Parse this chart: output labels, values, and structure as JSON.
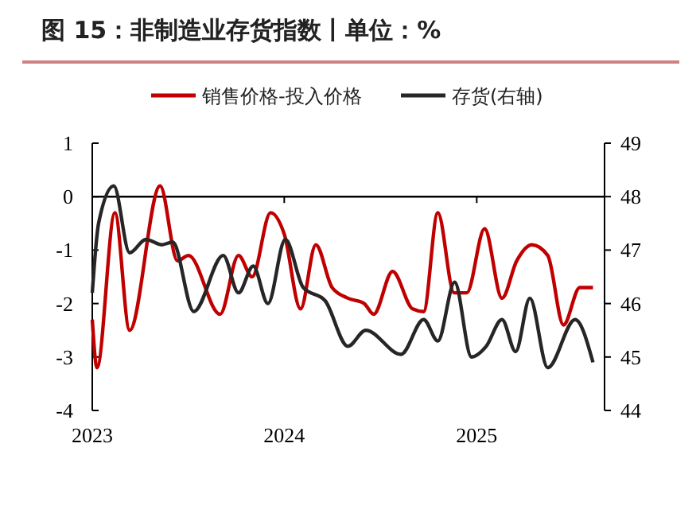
{
  "chart_data": {
    "type": "line",
    "title": "图 15：非制造业存货指数丨单位：%",
    "legend": "top",
    "xlim": [
      "2023-01-01",
      "2025-09-01"
    ],
    "xticks": [
      {
        "value": "2023-01-01",
        "label": "2023"
      },
      {
        "value": "2024-01-01",
        "label": "2024"
      },
      {
        "value": "2025-01-01",
        "label": "2025"
      }
    ],
    "ylim": [
      -4,
      1
    ],
    "yticks": [
      -4,
      -3,
      -2,
      -1,
      0,
      1
    ],
    "y2lim": [
      44,
      49
    ],
    "y2ticks": [
      44,
      45,
      46,
      47,
      48,
      49
    ],
    "line_style": "solid",
    "series": [
      {
        "name": "销售价格-投入价格",
        "color": "#c00000",
        "x": [
          "2023-01-01",
          "2023-01-10",
          "2023-02-13",
          "2023-03-13",
          "2023-05-10",
          "2023-06-12",
          "2023-07-03",
          "2023-09-01",
          "2023-10-06",
          "2023-11-01",
          "2023-12-06",
          "2024-01-01",
          "2024-02-01",
          "2024-03-01",
          "2024-04-01",
          "2024-05-01",
          "2024-06-01",
          "2024-06-19",
          "2024-07-25",
          "2024-09-01",
          "2024-09-22",
          "2024-10-19",
          "2024-11-19",
          "2024-12-13",
          "2025-01-16",
          "2025-02-18",
          "2025-03-18",
          "2025-04-16",
          "2025-05-16",
          "2025-06-15",
          "2025-07-16",
          "2025-08-10"
        ],
        "values": [
          -2.3,
          -3.2,
          -0.3,
          -2.5,
          0.2,
          -1.2,
          -1.1,
          -2.2,
          -1.1,
          -1.5,
          -0.3,
          -0.7,
          -2.1,
          -0.9,
          -1.7,
          -1.9,
          -2.0,
          -2.2,
          -1.4,
          -2.1,
          -2.15,
          -0.3,
          -1.8,
          -1.8,
          -0.6,
          -1.9,
          -1.2,
          -0.9,
          -1.1,
          -2.4,
          -1.7,
          -1.7
        ]
      },
      {
        "name": "存货(右轴)",
        "color": "#262626",
        "axis": "y2",
        "x": [
          "2023-01-01",
          "2023-01-13",
          "2023-02-11",
          "2023-03-13",
          "2023-04-13",
          "2023-05-13",
          "2023-06-03",
          "2023-07-13",
          "2023-09-07",
          "2023-10-06",
          "2023-11-03",
          "2023-12-01",
          "2024-01-03",
          "2024-02-06",
          "2024-03-19",
          "2024-05-01",
          "2024-06-04",
          "2024-08-10",
          "2024-09-22",
          "2024-10-19",
          "2024-11-20",
          "2024-12-22",
          "2025-01-19",
          "2025-02-18",
          "2025-03-16",
          "2025-04-12",
          "2025-05-16",
          "2025-07-07",
          "2025-08-10"
        ],
        "values": [
          46.2,
          47.5,
          48.2,
          46.95,
          47.2,
          47.1,
          47.15,
          45.85,
          46.9,
          46.2,
          46.7,
          46.0,
          47.2,
          46.3,
          46.05,
          45.2,
          45.5,
          45.05,
          45.7,
          45.3,
          46.4,
          45.0,
          45.2,
          45.7,
          45.1,
          46.1,
          44.8,
          45.7,
          44.9
        ]
      }
    ]
  }
}
